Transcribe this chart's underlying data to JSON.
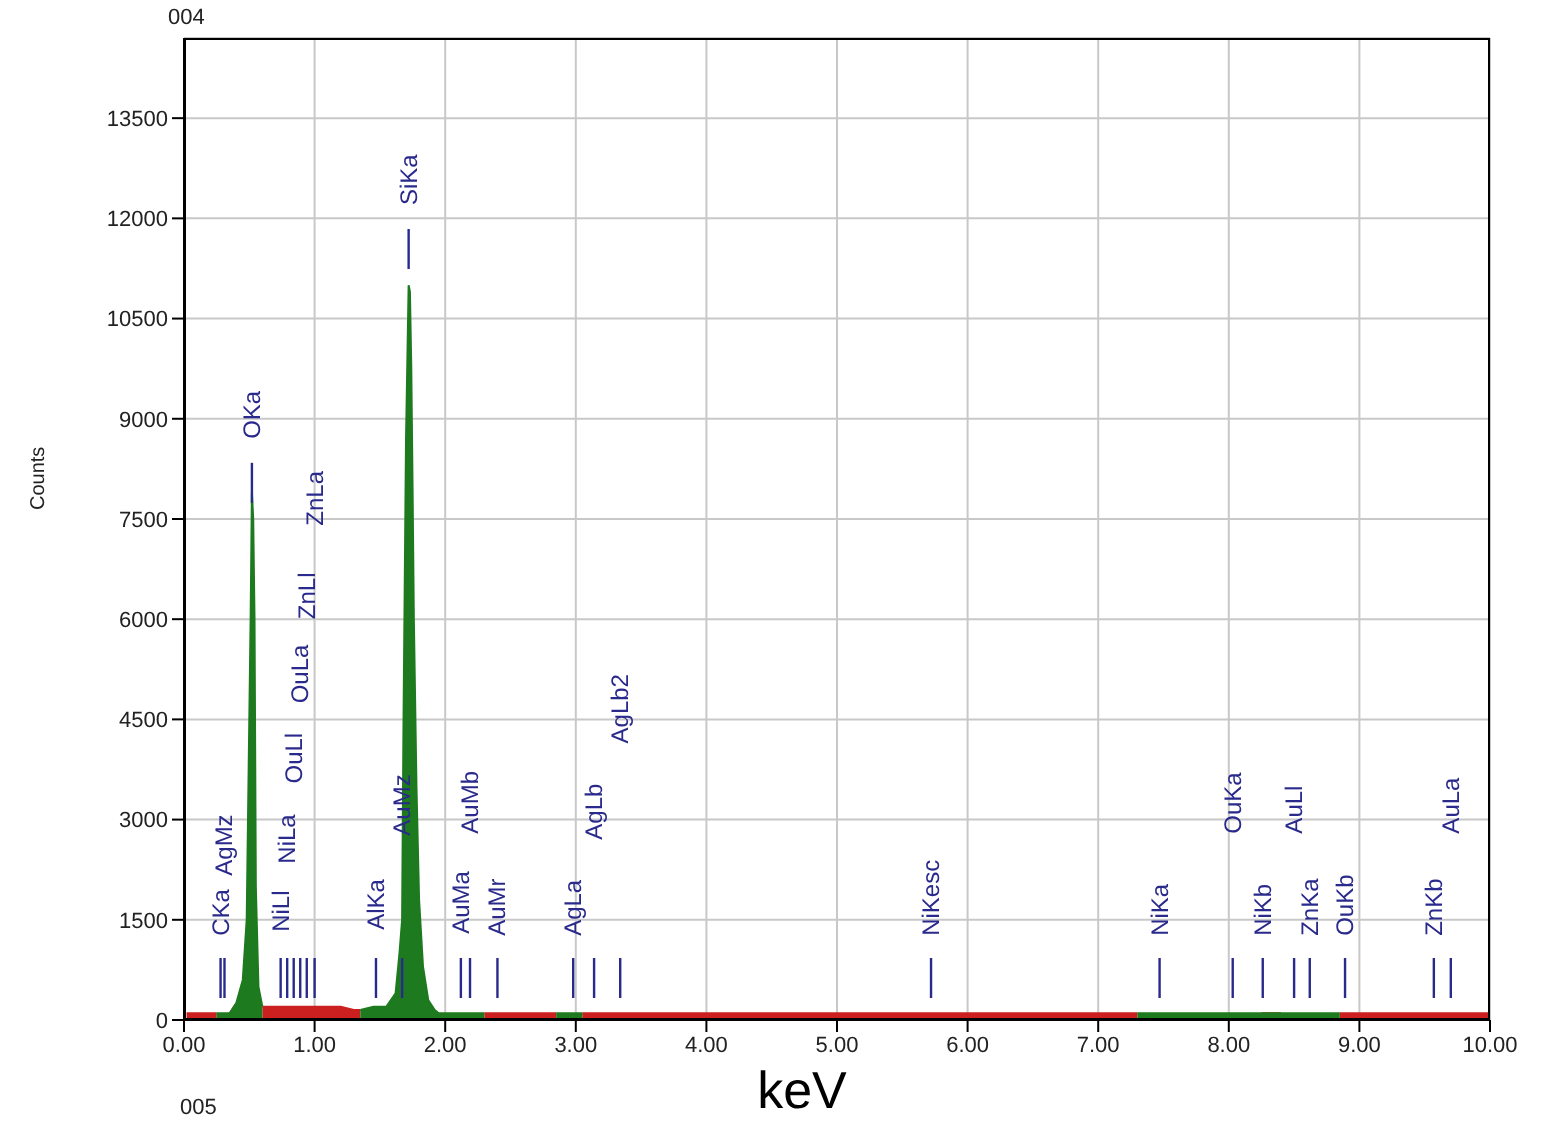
{
  "chart_data": {
    "type": "area",
    "title": "004",
    "xlabel": "keV",
    "ylabel": "Counts",
    "x": [
      0.02,
      0.1,
      0.2,
      0.25,
      0.3,
      0.35,
      0.4,
      0.45,
      0.48,
      0.5,
      0.51,
      0.52,
      0.53,
      0.54,
      0.55,
      0.57,
      0.6,
      0.7,
      0.8,
      0.9,
      1.0,
      1.1,
      1.2,
      1.3,
      1.35,
      1.45,
      1.55,
      1.62,
      1.65,
      1.67,
      1.68,
      1.7,
      1.72,
      1.73,
      1.74,
      1.75,
      1.76,
      1.78,
      1.8,
      1.83,
      1.87,
      1.92,
      1.95,
      2.0,
      2.05,
      2.15,
      2.25,
      2.3,
      2.5,
      2.7,
      2.85,
      2.95,
      3.05,
      3.5,
      4.0,
      4.5,
      5.0,
      5.5,
      6.0,
      6.5,
      7.0,
      7.3,
      7.5,
      7.7,
      7.8,
      8.05,
      8.25,
      8.4,
      8.6,
      8.85,
      9.2,
      9.6,
      10.0
    ],
    "series": [
      {
        "color": "#cc2020",
        "values": [
          100,
          100,
          100,
          100,
          null,
          100,
          250,
          null,
          null,
          null,
          null,
          null,
          null,
          null,
          null,
          null,
          200,
          200,
          200,
          200,
          200,
          200,
          200,
          150,
          150,
          null,
          null,
          null,
          null,
          null,
          null,
          null,
          null,
          null,
          null,
          null,
          null,
          null,
          null,
          null,
          null,
          null,
          null,
          null,
          null,
          null,
          null,
          100,
          100,
          100,
          100,
          null,
          100,
          100,
          100,
          100,
          100,
          100,
          100,
          100,
          100,
          100,
          null,
          null,
          null,
          null,
          100,
          100,
          null,
          100,
          100,
          100,
          100
        ]
      },
      {
        "color": "#1e7a1e",
        "values": [
          null,
          null,
          null,
          100,
          100,
          100,
          250,
          600,
          1500,
          4500,
          6000,
          7900,
          7500,
          6000,
          2000,
          500,
          200,
          null,
          null,
          null,
          null,
          null,
          null,
          null,
          150,
          200,
          200,
          400,
          1000,
          1500,
          4300,
          8700,
          11000,
          10900,
          9800,
          8000,
          6000,
          3500,
          1800,
          800,
          300,
          150,
          100,
          100,
          100,
          100,
          100,
          100,
          null,
          null,
          100,
          100,
          100,
          null,
          null,
          null,
          null,
          null,
          null,
          null,
          null,
          100,
          100,
          100,
          100,
          100,
          100,
          100,
          100,
          100,
          null,
          null,
          null
        ]
      }
    ],
    "xlim": [
      0,
      10
    ],
    "xticks": [
      {
        "value": 0,
        "label": "0.00"
      },
      {
        "value": 1,
        "label": "1.00"
      },
      {
        "value": 2,
        "label": "2.00"
      },
      {
        "value": 3,
        "label": "3.00"
      },
      {
        "value": 4,
        "label": "4.00"
      },
      {
        "value": 5,
        "label": "5.00"
      },
      {
        "value": 6,
        "label": "6.00"
      },
      {
        "value": 7,
        "label": "7.00"
      },
      {
        "value": 8,
        "label": "8.00"
      },
      {
        "value": 9,
        "label": "9.00"
      },
      {
        "value": 10,
        "label": "10.00"
      }
    ],
    "ylim": [
      0,
      14700
    ],
    "yticks": [
      0,
      1500,
      3000,
      4500,
      6000,
      7500,
      9000,
      10500,
      12000,
      13500
    ],
    "grid": true,
    "annotations": [
      "CKa",
      "AgMz",
      "OKa",
      "NiLl",
      "NiLa",
      "OuLl",
      "OuLa",
      "ZnLl",
      "ZnLa",
      "AlKa",
      "AuMz",
      "SiKa",
      "AuMa",
      "AuMb",
      "AuMr",
      "AgLa",
      "AgLb",
      "AgLb2",
      "NiKesc",
      "NiKa",
      "OuKa",
      "NiKb",
      "AuLl",
      "ZnKa",
      "OuKb",
      "ZnKb",
      "AuLa",
      "005"
    ]
  }
}
